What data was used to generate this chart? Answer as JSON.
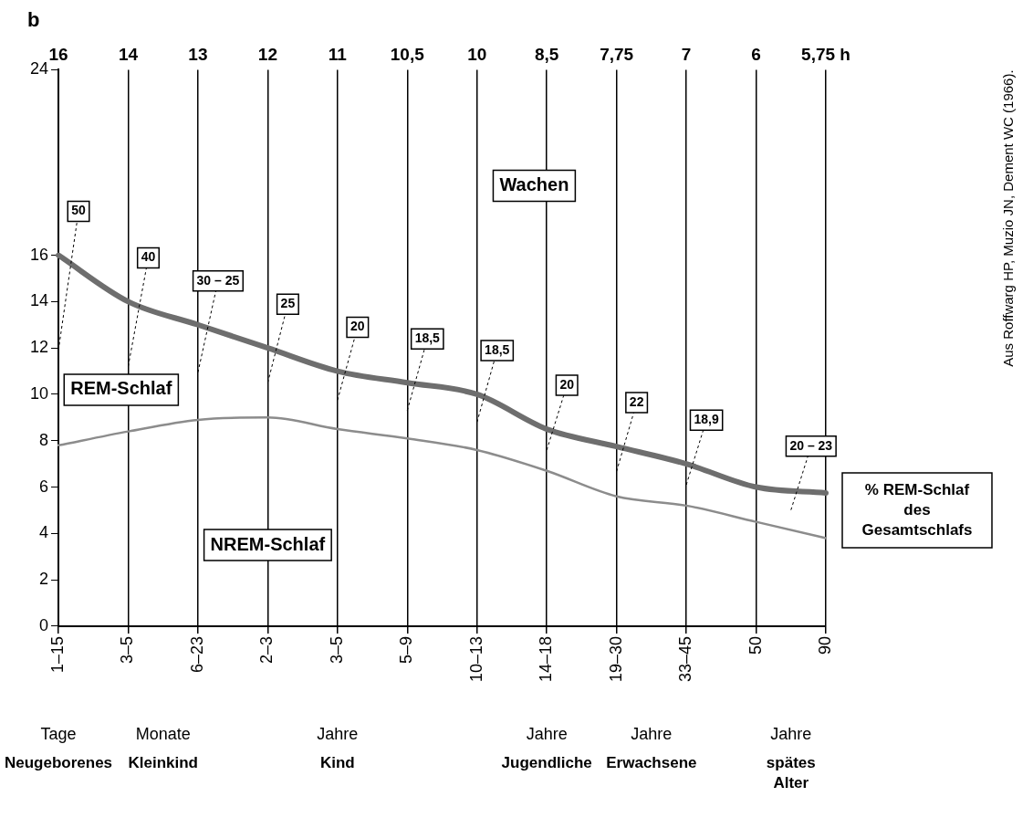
{
  "chart_data": {
    "type": "line",
    "title": "b",
    "categories": [
      "1–15",
      "3–5",
      "6–23",
      "2–3",
      "3–5",
      "5–9",
      "10–13",
      "14–18",
      "19–30",
      "33–45",
      "50",
      "90"
    ],
    "series": [
      {
        "color": "#6e6e6e",
        "values": [
          16,
          14,
          13,
          12,
          11,
          10.5,
          10,
          8.5,
          7.75,
          7,
          6,
          5.75
        ]
      },
      {
        "color": "#8c8c8c",
        "values": [
          7.8,
          8.4,
          8.9,
          9.0,
          8.5,
          8.1,
          7.6,
          6.7,
          5.6,
          5.2,
          4.5,
          3.8
        ]
      }
    ],
    "ylim": [
      0,
      24
    ],
    "yticks": [
      0,
      2,
      4,
      6,
      8,
      10,
      12,
      14,
      16,
      24
    ],
    "grid": "x",
    "legend": false,
    "marker": "none",
    "line_style": "solid",
    "annotations": [
      "16",
      "14",
      "13",
      "12",
      "11",
      "10,5",
      "10",
      "8,5",
      "7,75",
      "7",
      "6",
      "5,75 h",
      "50",
      "40",
      "30 – 25",
      "25",
      "20",
      "18,5",
      "18,5",
      "20",
      "22",
      "18,9",
      "20 – 23",
      "Tage",
      "Monate",
      "Jahre",
      "Jahre",
      "Jahre",
      "Jahre",
      "Neugeborenes",
      "Kleinkind",
      "Kind",
      "Jugendliche",
      "Erwachsene",
      "spätes Alter",
      "Wachen",
      "REM-Schlaf",
      "NREM-Schlaf",
      "% REM-Schlaf des Gesamtschlafs",
      "Aus Roffwarg HP, Muzio JN, Dement WC (1966)."
    ]
  }
}
